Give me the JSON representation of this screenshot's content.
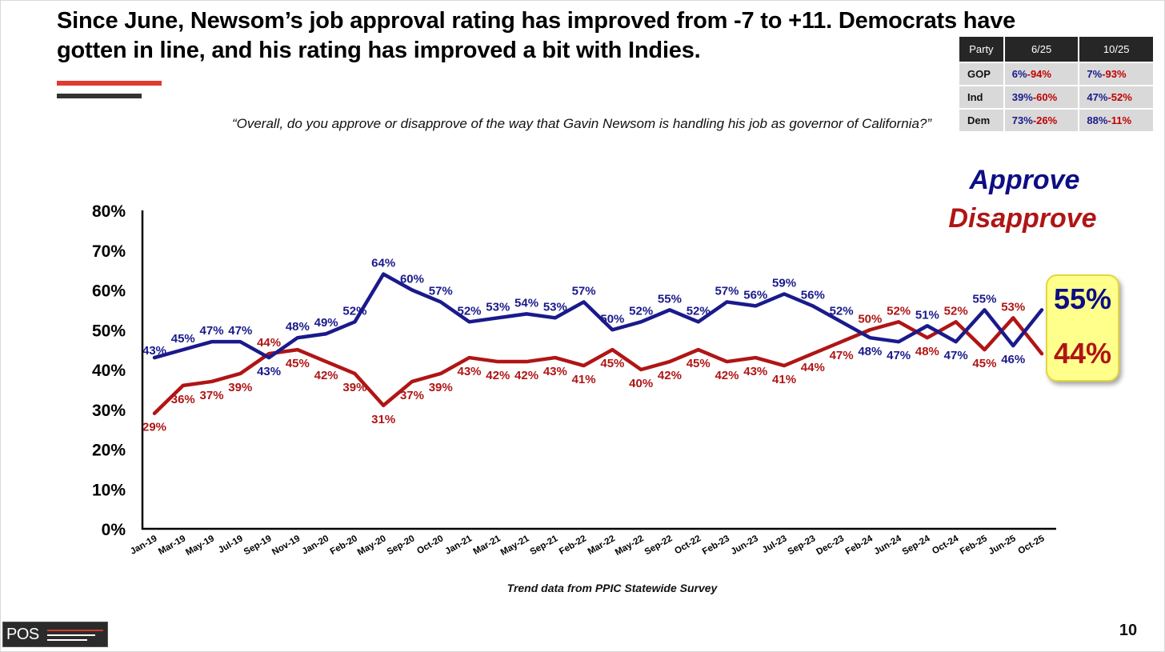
{
  "slide": {
    "title": "Since June, Newsom’s job approval rating has improved from -7 to +11. Democrats have gotten in line, and his rating has improved a bit with Indies.",
    "question": "“Overall, do you approve or disapprove of the way that Gavin Newsom is handling his job as governor of California?”",
    "source": "Trend data from PPIC Statewide Survey",
    "page_number": "10",
    "logo_text": "POS"
  },
  "party_table": {
    "headers": [
      "Party",
      "6/25",
      "10/25"
    ],
    "rows": [
      {
        "party": "GOP",
        "jun": {
          "approve": "6%",
          "disapprove": "94%"
        },
        "oct": {
          "approve": "7%",
          "disapprove": "93%"
        }
      },
      {
        "party": "Ind",
        "jun": {
          "approve": "39%",
          "disapprove": "60%"
        },
        "oct": {
          "approve": "47%",
          "disapprove": "52%"
        }
      },
      {
        "party": "Dem",
        "jun": {
          "approve": "73%",
          "disapprove": "26%"
        },
        "oct": {
          "approve": "88%",
          "disapprove": "11%"
        }
      }
    ]
  },
  "legend": {
    "approve": "Approve",
    "disapprove": "Disapprove"
  },
  "callout": {
    "approve": "55%",
    "disapprove": "44%"
  },
  "colors": {
    "approve": "#1a1a8c",
    "disapprove": "#b01515",
    "axis": "#000000"
  },
  "chart_data": {
    "type": "line",
    "categories": [
      "Jan-19",
      "Mar-19",
      "May-19",
      "Jul-19",
      "Sep-19",
      "Nov-19",
      "Jan-20",
      "Feb-20",
      "May-20",
      "Sep-20",
      "Oct-20",
      "Jan-21",
      "Mar-21",
      "May-21",
      "Sep-21",
      "Feb-22",
      "Mar-22",
      "May-22",
      "Sep-22",
      "Oct-22",
      "Feb-23",
      "Jun-23",
      "Jul-23",
      "Sep-23",
      "Dec-23",
      "Feb-24",
      "Jun-24",
      "Sep-24",
      "Oct-24",
      "Feb-25",
      "Jun-25",
      "Oct-25"
    ],
    "series": [
      {
        "name": "Approve",
        "values": [
          43,
          45,
          47,
          47,
          43,
          48,
          49,
          52,
          64,
          60,
          57,
          52,
          53,
          54,
          53,
          57,
          50,
          52,
          55,
          52,
          57,
          56,
          59,
          56,
          null,
          48,
          47,
          51,
          47,
          55,
          46,
          55
        ],
        "labels": [
          "43%",
          "45%",
          "47%",
          "47%",
          "43%",
          "48%",
          "49%",
          "52%",
          "64%",
          "60%",
          "57%",
          "52%",
          "53%",
          "54%",
          "53%",
          "57%",
          "50%",
          "52%",
          "55%",
          "52%",
          "57%",
          "56%",
          "59%",
          "56%",
          "52%",
          "48%",
          "47%",
          "51%",
          "47%",
          "55%",
          "46%",
          ""
        ]
      },
      {
        "name": "Disapprove",
        "values": [
          29,
          36,
          37,
          39,
          44,
          45,
          42,
          39,
          31,
          37,
          39,
          43,
          42,
          42,
          43,
          41,
          45,
          40,
          42,
          45,
          42,
          43,
          41,
          44,
          null,
          50,
          52,
          48,
          52,
          45,
          53,
          44
        ],
        "labels": [
          "29%",
          "36%",
          "37%",
          "39%",
          "44%",
          "45%",
          "42%",
          "39%",
          "31%",
          "37%",
          "39%",
          "43%",
          "42%",
          "42%",
          "43%",
          "41%",
          "45%",
          "40%",
          "42%",
          "45%",
          "42%",
          "43%",
          "41%",
          "44%",
          "47%",
          "50%",
          "52%",
          "48%",
          "52%",
          "45%",
          "53%",
          ""
        ]
      }
    ],
    "title": "",
    "xlabel": "",
    "ylabel": "",
    "ylim": [
      0,
      80
    ],
    "yticks": [
      "0%",
      "10%",
      "20%",
      "30%",
      "40%",
      "50%",
      "60%",
      "70%",
      "80%"
    ],
    "grid": false
  }
}
